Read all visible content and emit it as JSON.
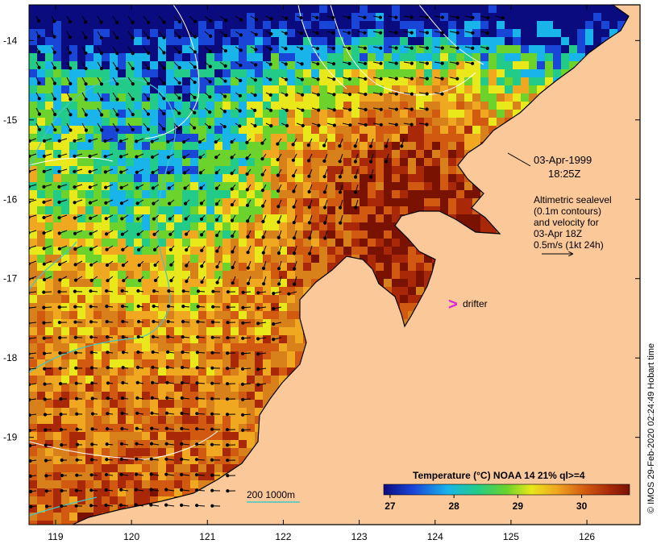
{
  "map": {
    "date": "03-Apr-1999",
    "time": "18:25Z",
    "legend_lines": [
      "Altimetric sealevel",
      "(0.1m contours)",
      "and velocity for",
      "03-Apr 18Z",
      "0.5m/s (1kt 24h)"
    ],
    "drifter_label": "drifter",
    "drifter_symbol": ">",
    "isobath_label": "200  1000m",
    "colorbar": {
      "title": "Temperature (°C) NOAA 14 21% ql>=4",
      "ticks": [
        "27",
        "28",
        "29",
        "30"
      ],
      "tick_values": [
        27,
        28,
        29,
        30
      ],
      "range": [
        26.9,
        30.75
      ]
    },
    "credit": "© IMOS 29-Feb-2020 02:24:49 Hobart time",
    "lon_axis": {
      "range": [
        118.65,
        126.7
      ],
      "ticks": [
        "119",
        "120",
        "121",
        "122",
        "123",
        "124",
        "125",
        "126"
      ],
      "values": [
        119,
        120,
        121,
        122,
        123,
        124,
        125,
        126
      ]
    },
    "lat_axis": {
      "range": [
        -20.1,
        -13.55
      ],
      "ticks": [
        "-14",
        "-15",
        "-16",
        "-17",
        "-18",
        "-19"
      ],
      "values": [
        -14,
        -15,
        -16,
        -17,
        -18,
        -19
      ]
    },
    "colors": {
      "land": "#fbc89a",
      "warm": "#9b1c04",
      "cool": "#0a1a8c",
      "drifter": "#e020e0",
      "isobath": "#40c8c8",
      "contour": "#ffffff"
    }
  }
}
